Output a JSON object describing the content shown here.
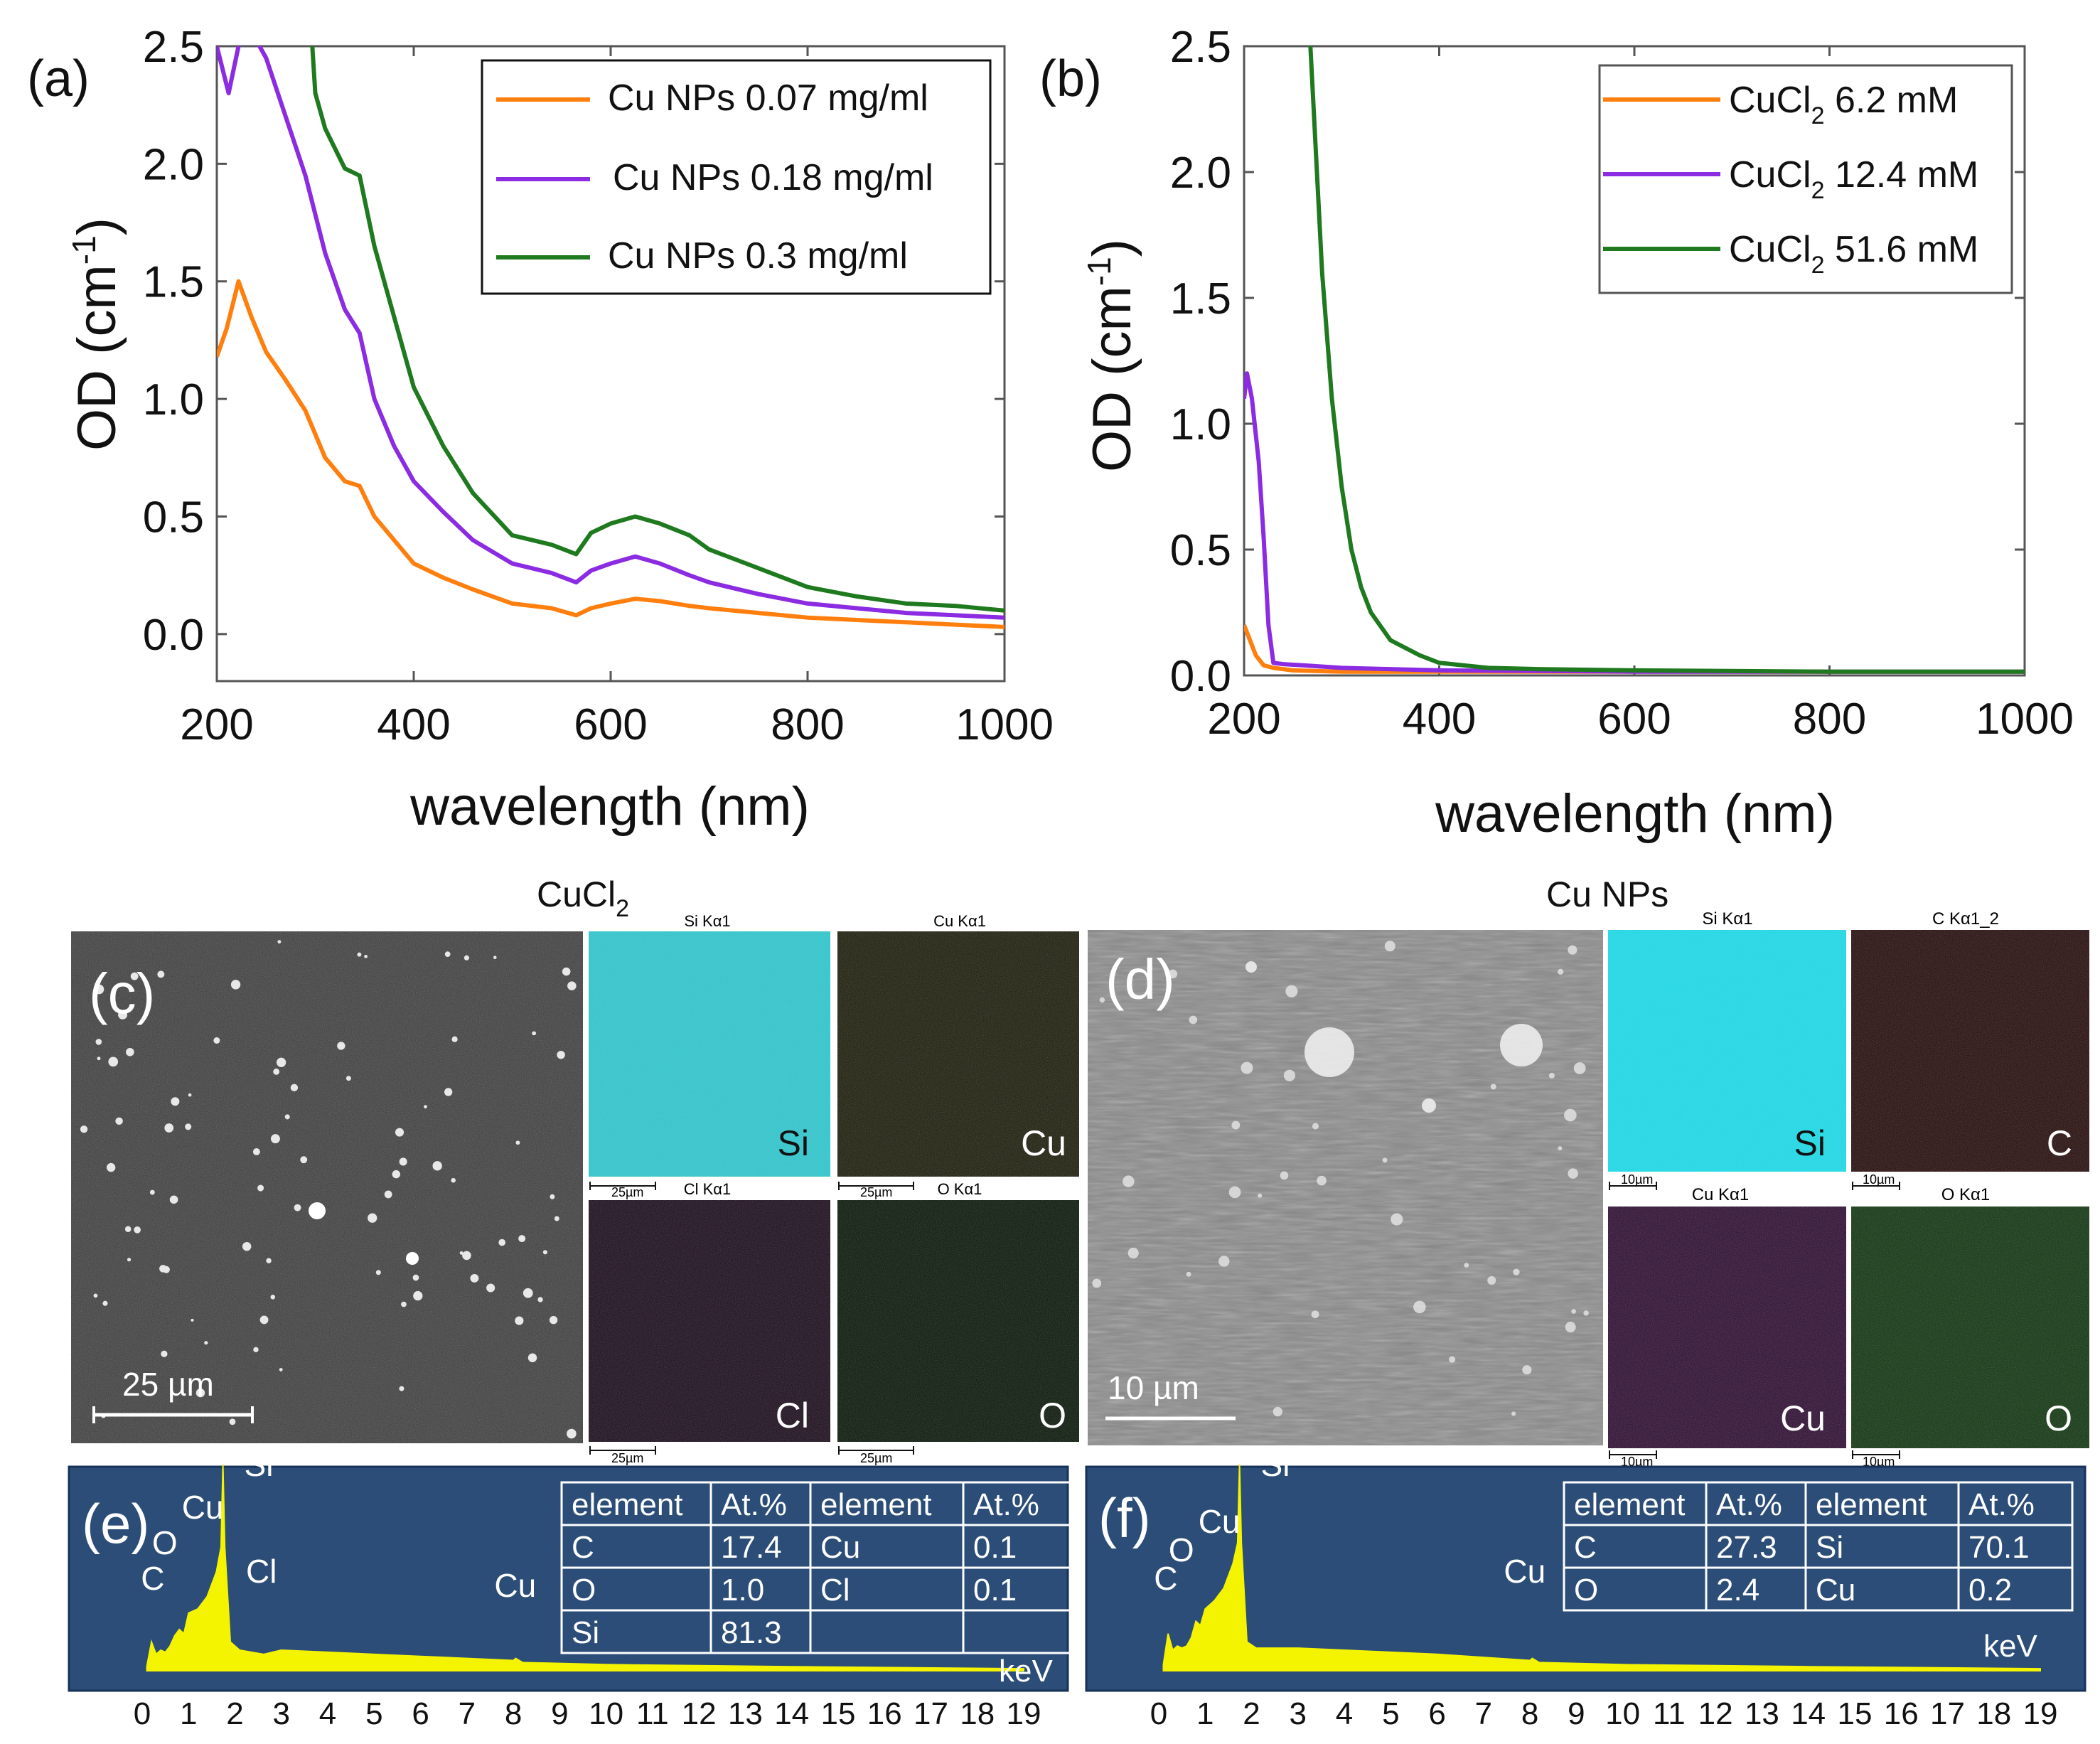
{
  "chart_data": [
    {
      "panel": "(a)",
      "type": "line",
      "xlabel": "wavelength (nm)",
      "ylabel": "OD (cm-1)",
      "ylabel_parts": {
        "main": "OD (cm",
        "sup": "-1",
        "close": ")"
      },
      "xlim": [
        200,
        1000
      ],
      "ylim": [
        -0.2,
        2.5
      ],
      "xticks": [
        200,
        400,
        600,
        800,
        1000
      ],
      "yticks": [
        "0.0",
        "0.5",
        "1.0",
        "1.5",
        "2.0",
        "2.5"
      ],
      "legend_position": "top-right",
      "series": [
        {
          "name": "Cu NPs 0.07 mg/ml",
          "color": "#ff7f0e",
          "x": [
            200,
            210,
            222,
            235,
            250,
            270,
            290,
            310,
            330,
            345,
            360,
            380,
            400,
            430,
            460,
            500,
            540,
            565,
            580,
            600,
            625,
            650,
            680,
            700,
            750,
            800,
            850,
            900,
            950,
            1000
          ],
          "y": [
            1.18,
            1.3,
            1.5,
            1.35,
            1.2,
            1.08,
            0.95,
            0.75,
            0.65,
            0.63,
            0.5,
            0.4,
            0.3,
            0.24,
            0.19,
            0.13,
            0.11,
            0.08,
            0.11,
            0.13,
            0.15,
            0.14,
            0.12,
            0.11,
            0.09,
            0.07,
            0.06,
            0.05,
            0.04,
            0.03
          ]
        },
        {
          "name": "Cu NPs 0.18 mg/ml",
          "color": "#8b2be2",
          "x": [
            200,
            212,
            222,
            230,
            250,
            270,
            290,
            310,
            330,
            345,
            360,
            380,
            400,
            430,
            460,
            500,
            540,
            565,
            580,
            600,
            625,
            650,
            680,
            700,
            750,
            800,
            850,
            900,
            950,
            1000
          ],
          "y": [
            2.5,
            2.3,
            2.5,
            2.6,
            2.45,
            2.2,
            1.95,
            1.62,
            1.38,
            1.28,
            1.0,
            0.8,
            0.65,
            0.52,
            0.4,
            0.3,
            0.26,
            0.22,
            0.27,
            0.3,
            0.33,
            0.3,
            0.25,
            0.22,
            0.17,
            0.13,
            0.11,
            0.09,
            0.08,
            0.07
          ]
        },
        {
          "name": "Cu NPs 0.3 mg/ml",
          "color": "#1f7a1f",
          "x": [
            297,
            300,
            310,
            330,
            345,
            360,
            380,
            400,
            430,
            460,
            500,
            540,
            565,
            580,
            600,
            625,
            650,
            680,
            700,
            750,
            800,
            850,
            900,
            950,
            1000
          ],
          "y": [
            2.5,
            2.3,
            2.15,
            1.98,
            1.95,
            1.65,
            1.35,
            1.05,
            0.8,
            0.6,
            0.42,
            0.38,
            0.34,
            0.43,
            0.47,
            0.5,
            0.47,
            0.42,
            0.36,
            0.28,
            0.2,
            0.16,
            0.13,
            0.12,
            0.1
          ]
        }
      ]
    },
    {
      "panel": "(b)",
      "type": "line",
      "xlabel": "wavelength (nm)",
      "ylabel": "OD (cm-1)",
      "ylabel_parts": {
        "main": "OD (cm",
        "sup": "-1",
        "close": ")"
      },
      "xlim": [
        200,
        1000
      ],
      "ylim": [
        0.0,
        2.5
      ],
      "xticks": [
        200,
        400,
        600,
        800,
        1000
      ],
      "yticks": [
        "0.0",
        "0.5",
        "1.0",
        "1.5",
        "2.0",
        "2.5"
      ],
      "legend_position": "top-right",
      "series": [
        {
          "name": "CuCl2 6.2 mM",
          "label_parts": {
            "main": "CuCl",
            "sub": "2",
            "rest": " 6.2 mM"
          },
          "color": "#ff7f0e",
          "x": [
            200,
            205,
            212,
            220,
            230,
            250,
            300,
            400,
            600,
            800,
            1000
          ],
          "y": [
            0.2,
            0.15,
            0.08,
            0.04,
            0.03,
            0.02,
            0.015,
            0.015,
            0.015,
            0.015,
            0.015
          ]
        },
        {
          "name": "CuCl2 12.4 mM",
          "label_parts": {
            "main": "CuCl",
            "sub": "2",
            "rest": " 12.4 mM"
          },
          "color": "#8b2be2",
          "x": [
            200,
            203,
            208,
            215,
            220,
            225,
            230,
            240,
            260,
            300,
            400,
            600,
            800,
            1000
          ],
          "y": [
            1.1,
            1.2,
            1.1,
            0.85,
            0.55,
            0.2,
            0.05,
            0.045,
            0.04,
            0.03,
            0.02,
            0.015,
            0.015,
            0.015
          ]
        },
        {
          "name": "CuCl2 51.6 mM",
          "label_parts": {
            "main": "CuCl",
            "sub": "2",
            "rest": " 51.6 mM"
          },
          "color": "#1f7a1f",
          "x": [
            268,
            272,
            280,
            290,
            300,
            310,
            320,
            330,
            350,
            380,
            400,
            450,
            500,
            600,
            800,
            1000
          ],
          "y": [
            2.5,
            2.2,
            1.6,
            1.1,
            0.75,
            0.5,
            0.35,
            0.25,
            0.14,
            0.08,
            0.05,
            0.03,
            0.025,
            0.02,
            0.015,
            0.015
          ]
        }
      ]
    },
    {
      "panel": "(e)",
      "type": "area",
      "xlabel": "keV",
      "xlim": [
        0,
        19
      ],
      "xticks": [
        "0",
        "1",
        "2",
        "3",
        "4",
        "5",
        "6",
        "7",
        "8",
        "9",
        "10",
        "11",
        "12",
        "13",
        "14",
        "15",
        "16",
        "17",
        "18",
        "19"
      ],
      "peak_labels": [
        {
          "label": "Si",
          "kev": 1.74
        },
        {
          "label": "Cu",
          "kev": 0.93
        },
        {
          "label": "O",
          "kev": 0.52
        },
        {
          "label": "C",
          "kev": 0.28
        },
        {
          "label": "Cl",
          "kev": 2.62
        },
        {
          "label": "Cu",
          "kev": 8.05
        }
      ],
      "x": [
        0.1,
        0.2,
        0.3,
        0.4,
        0.5,
        0.6,
        0.7,
        0.8,
        0.9,
        1.0,
        1.2,
        1.4,
        1.6,
        1.7,
        1.74,
        1.78,
        1.9,
        2.1,
        2.62,
        3.0,
        4.0,
        6.0,
        8.0,
        8.05,
        8.2,
        10.0,
        14.0,
        19.0
      ],
      "y": [
        2,
        14,
        8,
        10,
        9,
        12,
        17,
        20,
        18,
        28,
        30,
        36,
        48,
        60,
        100,
        60,
        14,
        10,
        8,
        10,
        9,
        7,
        5,
        6,
        4,
        3,
        2,
        1
      ]
    },
    {
      "panel": "(f)",
      "type": "area",
      "xlabel": "keV",
      "xlim": [
        0,
        19
      ],
      "xticks": [
        "0",
        "1",
        "2",
        "3",
        "4",
        "5",
        "6",
        "7",
        "8",
        "9",
        "10",
        "11",
        "12",
        "13",
        "14",
        "15",
        "16",
        "17",
        "18",
        "19"
      ],
      "peak_labels": [
        {
          "label": "Si",
          "kev": 1.74
        },
        {
          "label": "Cu",
          "kev": 0.93
        },
        {
          "label": "O",
          "kev": 0.52
        },
        {
          "label": "C",
          "kev": 0.28
        },
        {
          "label": "Cu",
          "kev": 8.05
        }
      ],
      "x": [
        0.1,
        0.2,
        0.3,
        0.4,
        0.5,
        0.6,
        0.7,
        0.8,
        0.9,
        1.0,
        1.2,
        1.4,
        1.6,
        1.7,
        1.74,
        1.78,
        1.9,
        2.1,
        3.0,
        4.0,
        6.0,
        8.0,
        8.05,
        8.2,
        10.0,
        14.0,
        19.0
      ],
      "y": [
        3,
        18,
        10,
        12,
        11,
        12,
        16,
        24,
        22,
        30,
        34,
        40,
        52,
        62,
        100,
        62,
        14,
        11,
        11,
        10,
        8,
        5,
        6,
        4,
        3,
        2,
        1
      ]
    }
  ],
  "edx_tables": {
    "e": {
      "headers": [
        "element",
        "At.%",
        "element",
        "At.%"
      ],
      "rows": [
        [
          "C",
          "17.4",
          "Cu",
          "0.1"
        ],
        [
          "O",
          "1.0",
          "Cl",
          "0.1"
        ],
        [
          "Si",
          "81.3",
          "",
          ""
        ]
      ]
    },
    "f": {
      "headers": [
        "element",
        "At.%",
        "element",
        "At.%"
      ],
      "rows": [
        [
          "C",
          "27.3",
          "Si",
          "70.1"
        ],
        [
          "O",
          "2.4",
          "Cu",
          "0.2"
        ]
      ]
    }
  },
  "sem_panels": {
    "c": {
      "panel": "(c)",
      "title": {
        "main": "CuCl",
        "sub": "2"
      },
      "scale_bar": "25 µm",
      "maps": [
        {
          "title": "Si Kα1",
          "element": "Si",
          "color": "#35c8cf",
          "scale": "25µm"
        },
        {
          "title": "Cu Kα1",
          "element": "Cu",
          "color": "#1a1a08",
          "scale": "25µm"
        },
        {
          "title": "Cl Kα1",
          "element": "Cl",
          "color": "#180818",
          "scale": "25µm"
        },
        {
          "title": "O Kα1",
          "element": "O",
          "color": "#051405",
          "scale": "25µm"
        }
      ]
    },
    "d": {
      "panel": "(d)",
      "title": {
        "main": "Cu NPs"
      },
      "scale_bar": "10 µm",
      "maps": [
        {
          "title": "Si Kα1",
          "element": "Si",
          "color": "#25dbe8",
          "scale": "10µm"
        },
        {
          "title": "C Kα1_2",
          "element": "C",
          "color": "#230808",
          "scale": "10µm"
        },
        {
          "title": "Cu Kα1",
          "element": "Cu",
          "color": "#2c0a30",
          "scale": "10µm"
        },
        {
          "title": "O Kα1",
          "element": "O",
          "color": "#0d330d",
          "scale": "10µm"
        }
      ]
    }
  },
  "colors": {
    "eds_bg": "#2b4d77",
    "eds_fill": "#f4f400",
    "orange": "#ff7f0e",
    "purple": "#8b2be2",
    "green": "#1f7a1f"
  }
}
